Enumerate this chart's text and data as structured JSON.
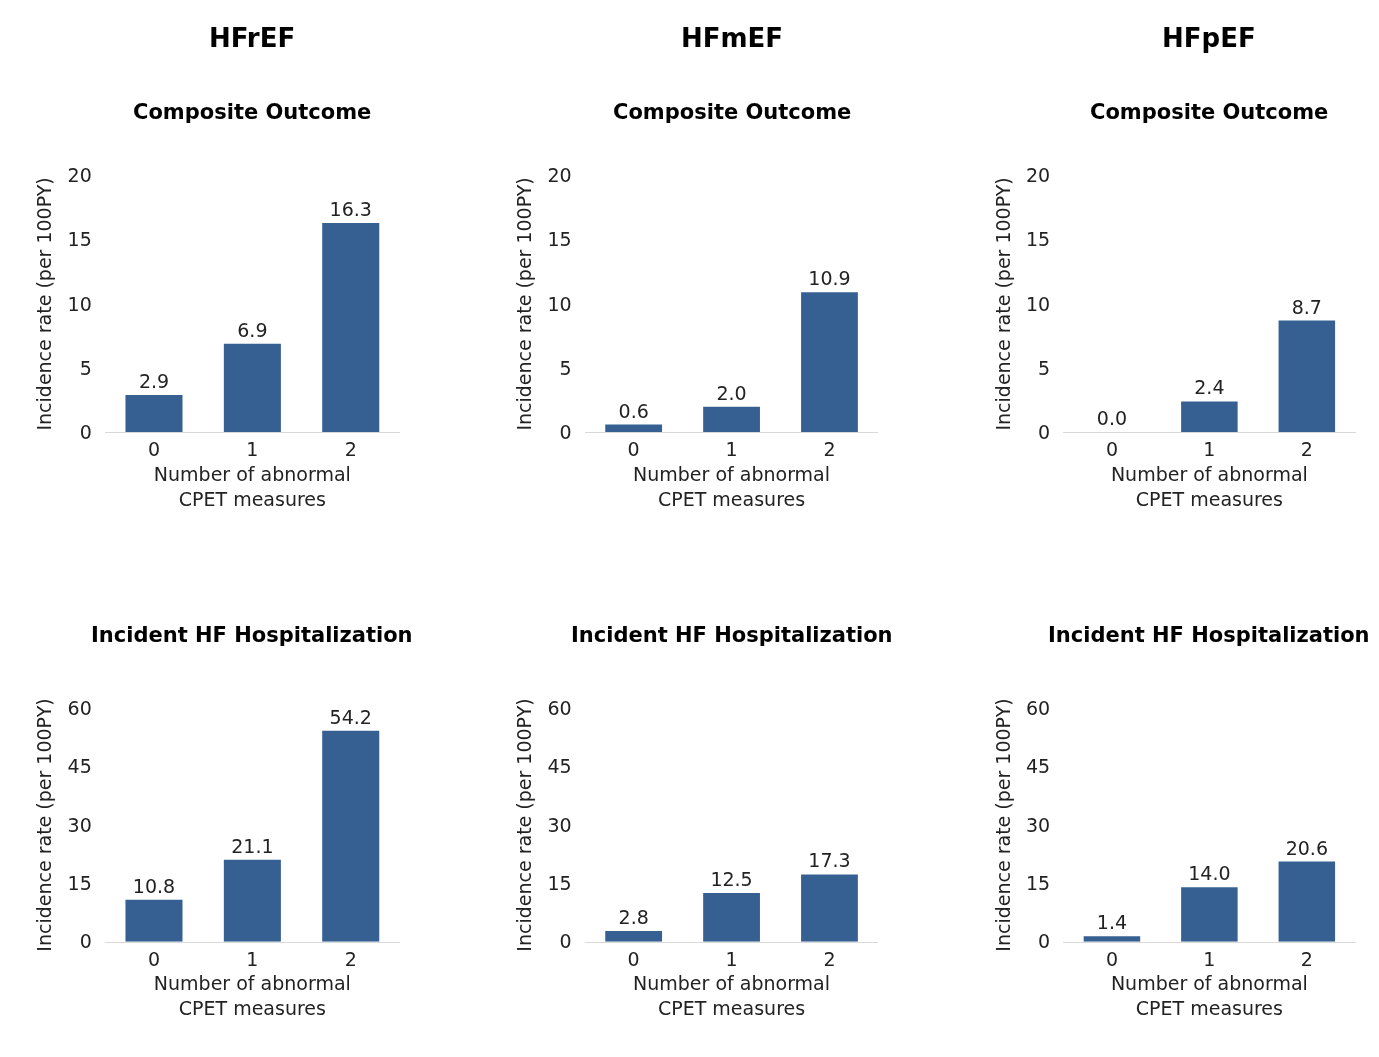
{
  "chart_data": [
    {
      "type": "bar",
      "title": "HFrEF",
      "subtitle": "Composite Outcome",
      "xlabel": "Number of abnormal\nCPET measures",
      "ylabel": "Incidence rate (per 100PY)",
      "categories": [
        "0",
        "1",
        "2"
      ],
      "values": [
        2.9,
        6.9,
        16.3
      ],
      "value_labels": [
        "2.9",
        "6.9",
        "16.3"
      ],
      "color": "#376092",
      "ylim": [
        0,
        20
      ],
      "yticks": [
        0,
        5,
        10,
        15,
        20
      ],
      "grid": false,
      "legend": false
    },
    {
      "type": "bar",
      "title": "HFmEF",
      "subtitle": "Composite Outcome",
      "xlabel": "Number of abnormal\nCPET measures",
      "ylabel": "Incidence rate (per 100PY)",
      "categories": [
        "0",
        "1",
        "2"
      ],
      "values": [
        0.6,
        2.0,
        10.9
      ],
      "value_labels": [
        "0.6",
        "2.0",
        "10.9"
      ],
      "color": "#376092",
      "ylim": [
        0,
        20
      ],
      "yticks": [
        0,
        5,
        10,
        15,
        20
      ],
      "grid": false,
      "legend": false
    },
    {
      "type": "bar",
      "title": "HFpEF",
      "subtitle": "Composite Outcome",
      "xlabel": "Number of abnormal\nCPET measures",
      "ylabel": "Incidence rate (per 100PY)",
      "categories": [
        "0",
        "1",
        "2"
      ],
      "values": [
        0.0,
        2.4,
        8.7
      ],
      "value_labels": [
        "0.0",
        "2.4",
        "8.7"
      ],
      "color": "#376092",
      "ylim": [
        0,
        20
      ],
      "yticks": [
        0,
        5,
        10,
        15,
        20
      ],
      "grid": false,
      "legend": false
    },
    {
      "type": "bar",
      "title": "Incident HF Hospitalization",
      "xlabel": "Number of abnormal\nCPET measures",
      "ylabel": "Incidence rate (per 100PY)",
      "categories": [
        "0",
        "1",
        "2"
      ],
      "values": [
        10.8,
        21.1,
        54.2
      ],
      "value_labels": [
        "10.8",
        "21.1",
        "54.2"
      ],
      "color": "#376092",
      "ylim": [
        0,
        60
      ],
      "yticks": [
        0,
        15,
        30,
        45,
        60
      ],
      "grid": false,
      "legend": false
    },
    {
      "type": "bar",
      "title": "Incident HF Hospitalization",
      "xlabel": "Number of abnormal\nCPET measures",
      "ylabel": "Incidence rate (per 100PY)",
      "categories": [
        "0",
        "1",
        "2"
      ],
      "values": [
        2.8,
        12.5,
        17.3
      ],
      "value_labels": [
        "2.8",
        "12.5",
        "17.3"
      ],
      "color": "#376092",
      "ylim": [
        0,
        60
      ],
      "yticks": [
        0,
        15,
        30,
        45,
        60
      ],
      "grid": false,
      "legend": false
    },
    {
      "type": "bar",
      "title": "Incident HF Hospitalization",
      "xlabel": "Number of abnormal\nCPET measures",
      "ylabel": "Incidence rate (per 100PY)",
      "categories": [
        "0",
        "1",
        "2"
      ],
      "values": [
        1.4,
        14.0,
        20.6
      ],
      "value_labels": [
        "1.4",
        "14.0",
        "20.6"
      ],
      "color": "#376092",
      "ylim": [
        0,
        60
      ],
      "yticks": [
        0,
        15,
        30,
        45,
        60
      ],
      "grid": false,
      "legend": false
    }
  ]
}
